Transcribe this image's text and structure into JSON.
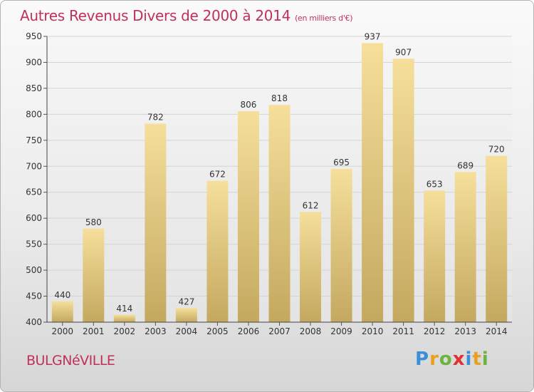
{
  "title": "Autres Revenus Divers de 2000 à 2014",
  "title_unit": "(en milliers d'€)",
  "location": "BULGNéVILLE",
  "logo_text": "Proxiti",
  "colors": {
    "title": "#c0305a",
    "bar_top": "#f5df9a",
    "bar_bottom": "#c4a860",
    "grid": "#d8d8d8"
  },
  "chart_data": {
    "type": "bar",
    "title": "Autres Revenus Divers de 2000 à 2014",
    "xlabel": "",
    "ylabel": "",
    "categories": [
      "2000",
      "2001",
      "2002",
      "2003",
      "2004",
      "2005",
      "2006",
      "2007",
      "2008",
      "2009",
      "2010",
      "2011",
      "2012",
      "2013",
      "2014"
    ],
    "values": [
      440,
      580,
      414,
      782,
      427,
      672,
      806,
      818,
      612,
      695,
      937,
      907,
      653,
      689,
      720
    ],
    "ylim": [
      400,
      950
    ],
    "yticks": [
      400,
      450,
      500,
      550,
      600,
      650,
      700,
      750,
      800,
      850,
      900,
      950
    ],
    "grid": true,
    "legend": "none"
  }
}
